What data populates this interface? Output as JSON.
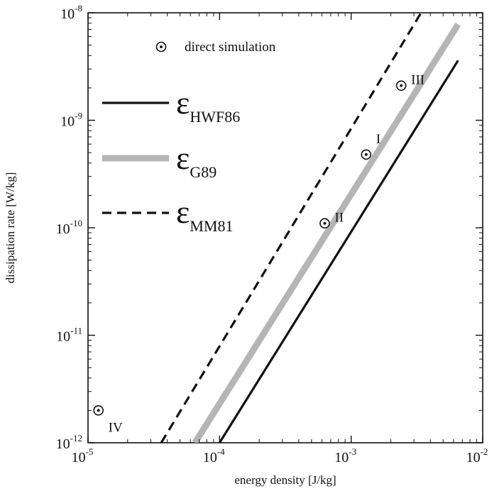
{
  "chart_data": {
    "type": "line",
    "xlabel": "energy density [J/kg]",
    "ylabel": "dissipation rate [W/kg]",
    "x_scale": "log",
    "y_scale": "log",
    "xlim": [
      1e-05,
      0.01
    ],
    "ylim": [
      1e-12,
      1e-08
    ],
    "grid": false,
    "x_ticks": [
      {
        "value": 1e-05,
        "base": "10",
        "exp": "-5"
      },
      {
        "value": 0.0001,
        "base": "10",
        "exp": "-4"
      },
      {
        "value": 0.001,
        "base": "10",
        "exp": "-3"
      },
      {
        "value": 0.01,
        "base": "10",
        "exp": "-2"
      }
    ],
    "y_ticks": [
      {
        "value": 1e-12,
        "base": "10",
        "exp": "-12"
      },
      {
        "value": 1e-11,
        "base": "10",
        "exp": "-11"
      },
      {
        "value": 1e-10,
        "base": "10",
        "exp": "-10"
      },
      {
        "value": 1e-09,
        "base": "10",
        "exp": "-9"
      },
      {
        "value": 1e-08,
        "base": "10",
        "exp": "-8"
      }
    ],
    "legend_placement": "top-left",
    "series": [
      {
        "name": "HWF86",
        "legend_symbol": "ε",
        "legend_subscript": "HWF86",
        "style": "solid",
        "color": "#111111",
        "x": [
          0.0001,
          0.0065
        ],
        "y": [
          1e-12,
          3.6e-09
        ]
      },
      {
        "name": "G89",
        "legend_symbol": "ε",
        "legend_subscript": "G89",
        "style": "thick-gray",
        "color": "#b5b5b5",
        "x": [
          6.5e-05,
          0.0065
        ],
        "y": [
          1e-12,
          7.8e-09
        ]
      },
      {
        "name": "MM81",
        "legend_symbol": "ε",
        "legend_subscript": "MM81",
        "style": "dashed",
        "color": "#111111",
        "x": [
          3.6e-05,
          0.0034
        ],
        "y": [
          1e-12,
          1e-08
        ]
      }
    ],
    "points": {
      "name": "direct simulation",
      "data": [
        {
          "label": "III",
          "x": 0.0024,
          "y": 2.1e-09
        },
        {
          "label": "I",
          "x": 0.0013,
          "y": 4.8e-10
        },
        {
          "label": "II",
          "x": 0.00063,
          "y": 1.1e-10
        },
        {
          "label": "IV",
          "x": 1.2e-05,
          "y": 2e-12
        }
      ]
    }
  }
}
